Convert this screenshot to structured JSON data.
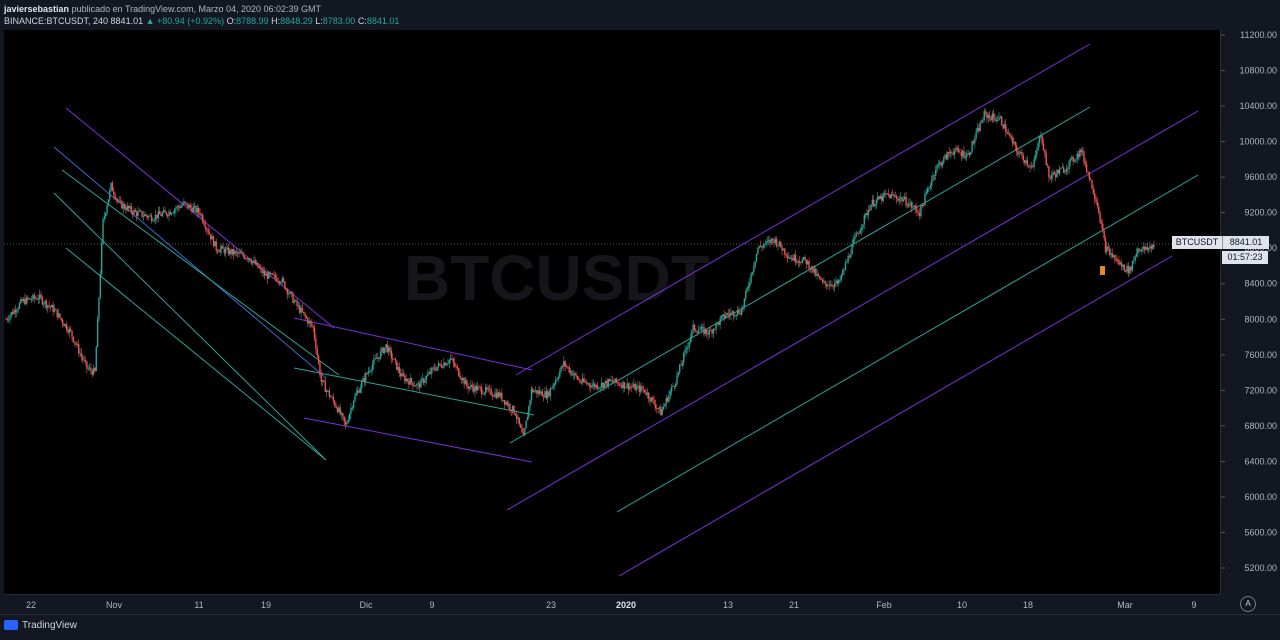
{
  "header": {
    "author": "javiersebastian",
    "published": "publicado en TradingView.com, Marzo 04, 2020 06:02:39 GMT",
    "symbol_line": "BINANCE:BTCUSDT, 240",
    "last": "8841.01",
    "change": "▲ +80.94 (+0.92%)",
    "o_label": "O:",
    "o_value": "8788.99",
    "h_label": "H:",
    "h_value": "8848.29",
    "l_label": "L:",
    "l_value": "8783.00",
    "c_label": "C:",
    "c_value": "8841.01"
  },
  "watermark": {
    "symbol": "BTCUSDT"
  },
  "price_tag": {
    "symbol": "BTCUSDT",
    "price": "8841.01",
    "countdown": "01:57:23"
  },
  "footer": {
    "brand": "TradingView",
    "auto_button": "A"
  },
  "colors": {
    "background": "#000000",
    "up": "#26a69a",
    "down": "#ef5350",
    "purple": "#7b2fd9",
    "channel_green": "#26a69a",
    "blue_line": "#3d6bd1"
  },
  "chart_data": {
    "type": "candlestick",
    "symbol": "BINANCE:BTCUSDT",
    "interval": "240",
    "ylim": [
      5000,
      11300
    ],
    "y_ticks": [
      11200,
      10800,
      10400,
      10000,
      9600,
      9200,
      8800,
      8400,
      8000,
      7600,
      7200,
      6800,
      6400,
      6000,
      5600,
      5200
    ],
    "y_tick_labels": [
      "11200.00",
      "10800.00",
      "10400.00",
      "10000.00",
      "9600.00",
      "9200.00",
      "8800.00",
      "8400.00",
      "8000.00",
      "7600.00",
      "7200.00",
      "6800.00",
      "6400.00",
      "6000.00",
      "5600.00",
      "5200.00"
    ],
    "x_tick_labels": [
      "22",
      "Nov",
      "11",
      "19",
      "Dic",
      "9",
      "23",
      "2020",
      "13",
      "21",
      "Feb",
      "10",
      "18",
      "Mar",
      "9"
    ],
    "last_price": 8841.01,
    "price_path": [
      [
        "2019-10-14",
        8000
      ],
      [
        "2019-10-16",
        8200
      ],
      [
        "2019-10-18",
        8250
      ],
      [
        "2019-10-20",
        8100
      ],
      [
        "2019-10-22",
        7850
      ],
      [
        "2019-10-24",
        7450
      ],
      [
        "2019-10-25",
        7400
      ],
      [
        "2019-10-26",
        9100
      ],
      [
        "2019-10-27",
        9500
      ],
      [
        "2019-10-28",
        9300
      ],
      [
        "2019-10-30",
        9200
      ],
      [
        "2019-11-01",
        9150
      ],
      [
        "2019-11-03",
        9200
      ],
      [
        "2019-11-05",
        9300
      ],
      [
        "2019-11-07",
        9200
      ],
      [
        "2019-11-09",
        8800
      ],
      [
        "2019-11-11",
        8750
      ],
      [
        "2019-11-13",
        8700
      ],
      [
        "2019-11-15",
        8500
      ],
      [
        "2019-11-17",
        8450
      ],
      [
        "2019-11-19",
        8150
      ],
      [
        "2019-11-21",
        7900
      ],
      [
        "2019-11-22",
        7300
      ],
      [
        "2019-11-24",
        7000
      ],
      [
        "2019-11-25",
        6800
      ],
      [
        "2019-11-26",
        7100
      ],
      [
        "2019-11-28",
        7450
      ],
      [
        "2019-11-30",
        7700
      ],
      [
        "2019-12-02",
        7350
      ],
      [
        "2019-12-04",
        7250
      ],
      [
        "2019-12-06",
        7450
      ],
      [
        "2019-12-08",
        7550
      ],
      [
        "2019-12-10",
        7250
      ],
      [
        "2019-12-12",
        7200
      ],
      [
        "2019-12-14",
        7150
      ],
      [
        "2019-12-16",
        6950
      ],
      [
        "2019-12-17",
        6650
      ],
      [
        "2019-12-18",
        7200
      ],
      [
        "2019-12-20",
        7150
      ],
      [
        "2019-12-22",
        7500
      ],
      [
        "2019-12-24",
        7300
      ],
      [
        "2019-12-26",
        7250
      ],
      [
        "2019-12-28",
        7300
      ],
      [
        "2019-12-30",
        7250
      ],
      [
        "2020-01-01",
        7200
      ],
      [
        "2020-01-03",
        6950
      ],
      [
        "2020-01-05",
        7350
      ],
      [
        "2020-01-07",
        7900
      ],
      [
        "2020-01-09",
        7850
      ],
      [
        "2020-01-11",
        8050
      ],
      [
        "2020-01-13",
        8100
      ],
      [
        "2020-01-15",
        8800
      ],
      [
        "2020-01-17",
        8900
      ],
      [
        "2020-01-19",
        8700
      ],
      [
        "2020-01-21",
        8650
      ],
      [
        "2020-01-23",
        8400
      ],
      [
        "2020-01-25",
        8400
      ],
      [
        "2020-01-27",
        8900
      ],
      [
        "2020-01-29",
        9300
      ],
      [
        "2020-01-31",
        9400
      ],
      [
        "2020-02-02",
        9350
      ],
      [
        "2020-02-04",
        9200
      ],
      [
        "2020-02-06",
        9700
      ],
      [
        "2020-02-08",
        9900
      ],
      [
        "2020-02-10",
        9850
      ],
      [
        "2020-02-12",
        10300
      ],
      [
        "2020-02-14",
        10250
      ],
      [
        "2020-02-16",
        9900
      ],
      [
        "2020-02-18",
        9700
      ],
      [
        "2020-02-19",
        10100
      ],
      [
        "2020-02-20",
        9600
      ],
      [
        "2020-02-22",
        9700
      ],
      [
        "2020-02-24",
        9900
      ],
      [
        "2020-02-26",
        9300
      ],
      [
        "2020-02-27",
        8800
      ],
      [
        "2020-02-29",
        8600
      ],
      [
        "2020-03-01",
        8550
      ],
      [
        "2020-03-02",
        8800
      ],
      [
        "2020-03-03",
        8780
      ],
      [
        "2020-03-04",
        8841
      ]
    ]
  }
}
